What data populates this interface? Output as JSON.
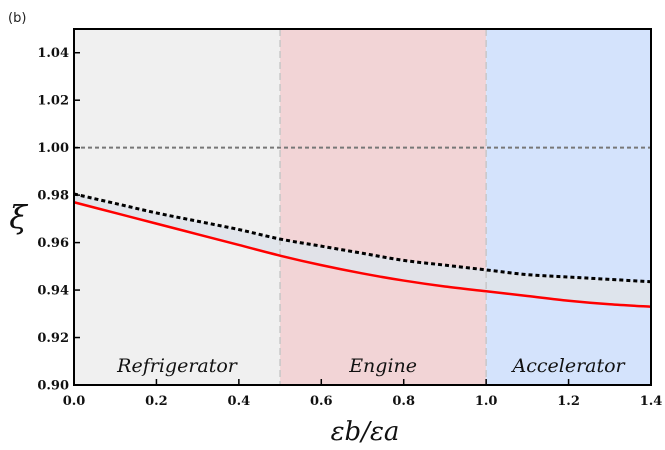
{
  "chart_data": {
    "type": "line",
    "panel_label": "(b)",
    "xlabel": "εb/εa",
    "ylabel": "ξ",
    "xlim": [
      0.0,
      1.4
    ],
    "ylim": [
      0.9,
      1.05
    ],
    "x_ticks": [
      "0.0",
      "0.2",
      "0.4",
      "0.6",
      "0.8",
      "1.0",
      "1.2",
      "1.4"
    ],
    "y_ticks": [
      "0.90",
      "0.92",
      "0.94",
      "0.96",
      "0.98",
      "1.00",
      "1.02",
      "1.04"
    ],
    "grid": false,
    "regions": [
      {
        "label": "Refrigerator",
        "x_range": [
          0.0,
          0.5
        ],
        "color": "#f0f0f0"
      },
      {
        "label": "Engine",
        "x_range": [
          0.5,
          1.0
        ],
        "color": "#f2d4d6"
      },
      {
        "label": "Accelerator",
        "x_range": [
          1.0,
          1.4
        ],
        "color": "#d4e3fc"
      }
    ],
    "reference_line": {
      "y": 1.0,
      "style": "dotted",
      "color": "#777777"
    },
    "fill_between_color": "#dfe3ea",
    "series": [
      {
        "style": "dotted",
        "color": "#000000",
        "x": [
          0.0,
          0.1,
          0.2,
          0.3,
          0.4,
          0.5,
          0.6,
          0.7,
          0.8,
          0.9,
          1.0,
          1.1,
          1.2,
          1.3,
          1.4
        ],
        "y": [
          0.9805,
          0.9765,
          0.9725,
          0.969,
          0.9655,
          0.9615,
          0.9585,
          0.9555,
          0.9525,
          0.9505,
          0.9485,
          0.9465,
          0.9455,
          0.9445,
          0.9435
        ]
      },
      {
        "style": "solid",
        "color": "#ff0000",
        "x": [
          0.0,
          0.1,
          0.2,
          0.3,
          0.4,
          0.5,
          0.6,
          0.7,
          0.8,
          0.9,
          1.0,
          1.1,
          1.2,
          1.3,
          1.4
        ],
        "y": [
          0.977,
          0.9725,
          0.968,
          0.9635,
          0.959,
          0.9545,
          0.9505,
          0.947,
          0.944,
          0.9415,
          0.9395,
          0.9375,
          0.9355,
          0.934,
          0.933
        ]
      }
    ]
  }
}
